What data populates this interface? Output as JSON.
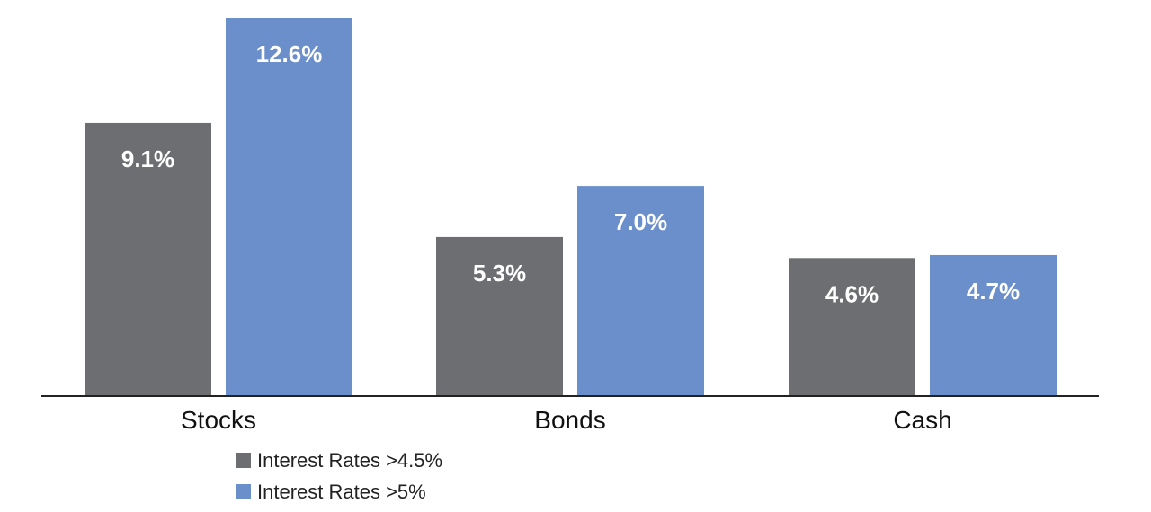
{
  "chart_data": {
    "type": "bar",
    "title": "",
    "xlabel": "",
    "ylabel": "",
    "categories": [
      "Stocks",
      "Bonds",
      "Cash"
    ],
    "series": [
      {
        "name": "Interest Rates >4.5%",
        "values": [
          9.1,
          5.3,
          4.6
        ],
        "labels": [
          "9.1%",
          "5.3%",
          "4.6%"
        ],
        "color": "#6d6e71"
      },
      {
        "name": "Interest Rates >5%",
        "values": [
          12.6,
          7.0,
          4.7
        ],
        "labels": [
          "12.6%",
          "7.0%",
          "4.7%"
        ],
        "color": "#6a8fca"
      }
    ],
    "ylim": [
      0,
      12.6
    ],
    "grid": false,
    "legend_position": "bottom-left",
    "data_labels": true
  }
}
